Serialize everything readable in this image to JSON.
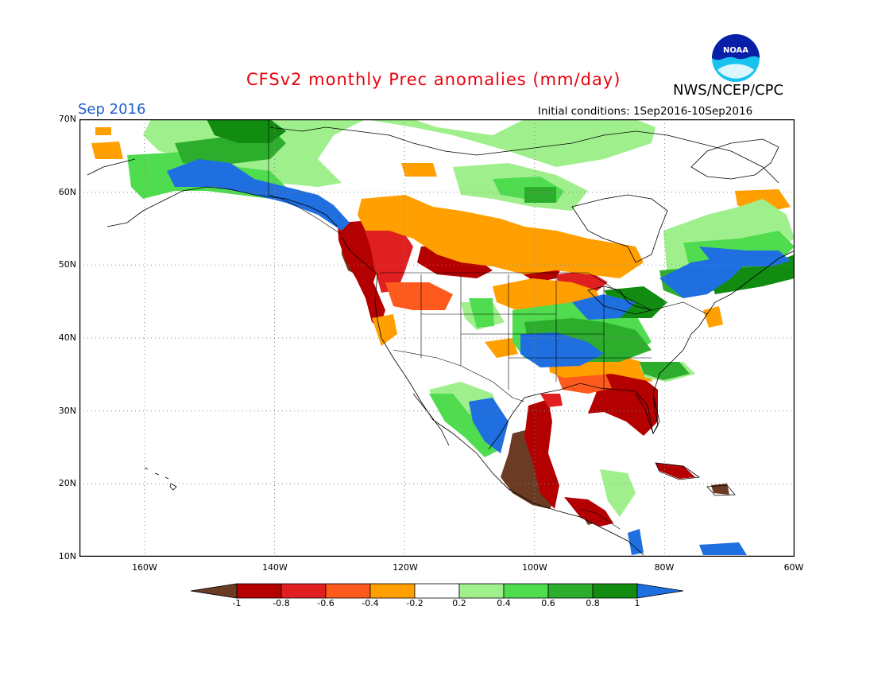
{
  "header": {
    "title": "CFSv2 monthly Prec anomalies (mm/day)",
    "month": "Sep 2016",
    "agency": "NWS/NCEP/CPC",
    "initial_conditions": "Initial conditions: 1Sep2016-10Sep2016",
    "logo_text": "NOAA"
  },
  "map": {
    "lat_labels": [
      "70N",
      "60N",
      "50N",
      "40N",
      "30N",
      "20N",
      "10N"
    ],
    "lon_labels": [
      "160W",
      "140W",
      "120W",
      "100W",
      "80W",
      "60W"
    ],
    "extent": {
      "lon": [
        -170,
        -60
      ],
      "lat": [
        10,
        70
      ]
    }
  },
  "colorbar": {
    "labels": [
      "-1",
      "-0.8",
      "-0.6",
      "-0.4",
      "-0.2",
      "0.2",
      "0.4",
      "0.6",
      "0.8",
      "1"
    ],
    "colors": [
      "#6b3b24",
      "#b40000",
      "#e02020",
      "#ff5a1e",
      "#ff9f00",
      "#ffffff",
      "#9ff08c",
      "#4fdc4f",
      "#2cae2c",
      "#118c11",
      "#1f6fe0"
    ]
  }
}
